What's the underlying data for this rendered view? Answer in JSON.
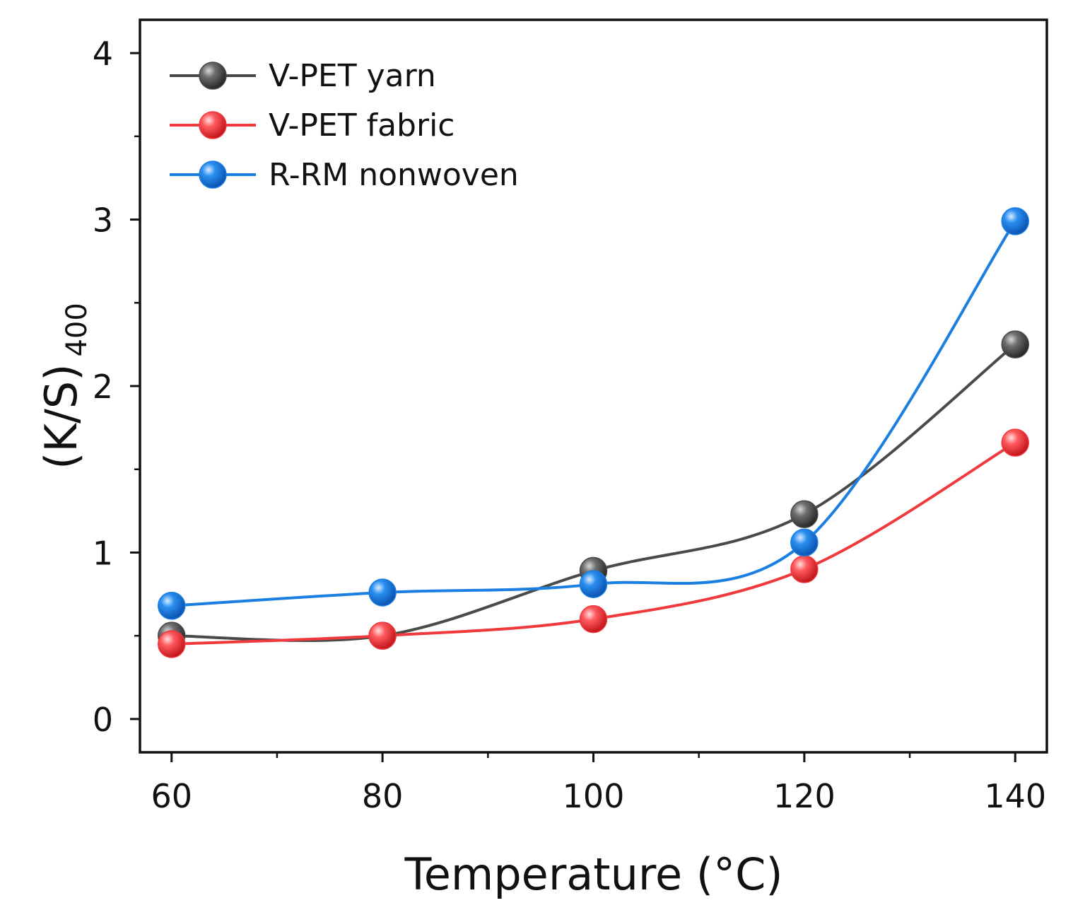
{
  "chart_data": {
    "type": "line",
    "title": "",
    "xlabel": "Temperature (°C)",
    "ylabel_main": "(K/S)",
    "ylabel_sub": "400",
    "x": [
      60,
      80,
      100,
      120,
      140
    ],
    "xlim": [
      57,
      143
    ],
    "ylim": [
      -0.2,
      4.2
    ],
    "x_ticks": [
      60,
      80,
      100,
      120,
      140
    ],
    "x_tick_labels": [
      "60",
      "80",
      "100",
      "120",
      "140"
    ],
    "x_minor_ticks": [
      70,
      90,
      110,
      130
    ],
    "y_ticks": [
      0,
      1,
      2,
      3,
      4
    ],
    "y_tick_labels": [
      "0",
      "1",
      "2",
      "3",
      "4"
    ],
    "y_minor_ticks": [
      0.5,
      1.5,
      2.5,
      3.5
    ],
    "grid": false,
    "legend_position": "top-left",
    "series": [
      {
        "name": "V-PET yarn",
        "color": "#4a4a4a",
        "values": [
          0.5,
          0.5,
          0.89,
          1.23,
          2.25
        ]
      },
      {
        "name": "V-PET fabric",
        "color": "#f0393d",
        "values": [
          0.45,
          0.5,
          0.6,
          0.9,
          1.66
        ]
      },
      {
        "name": "R-RM nonwoven",
        "color": "#1a7fe0",
        "values": [
          0.68,
          0.76,
          0.81,
          1.06,
          2.99
        ]
      }
    ]
  }
}
